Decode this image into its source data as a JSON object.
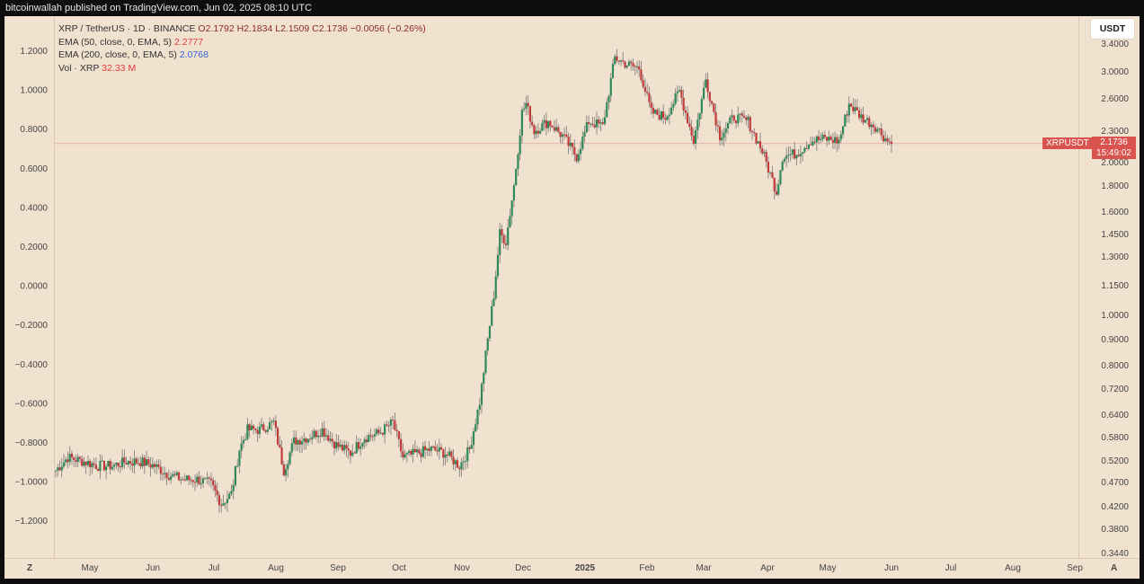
{
  "header": {
    "publisher": "bitcoinwallah published on TradingView.com, Jun 02, 2025 08:10 UTC"
  },
  "legend": {
    "pair": "XRP / TetherUS · 1D · BINANCE",
    "ohlc": "O2.1792  H2.1834  L2.1509  C2.1736  −0.0056 (−0.26%)",
    "ema50_label": "EMA (50, close, 0, EMA, 5)",
    "ema50_value": "2.2777",
    "ema200_label": "EMA (200, close, 0, EMA, 5)",
    "ema200_value": "2.0768",
    "vol_label": "Vol · XRP",
    "vol_value": "32.33 M"
  },
  "controls": {
    "currency": "USDT",
    "zoom_left": "Z",
    "auto_right": "A"
  },
  "price_tag": {
    "symbol": "XRPUSDT",
    "price": "2.1736",
    "countdown": "15:49:02"
  },
  "colors": {
    "up": "#2f8a57",
    "down": "#c23a3a",
    "background": "#f1e2d0",
    "tag": "#d9534f"
  },
  "chart_data": {
    "type": "candlestick",
    "left_axis_ticks": [
      "1.2000",
      "1.0000",
      "0.8000",
      "0.6000",
      "0.4000",
      "0.2000",
      "0.0000",
      "−0.2000",
      "−0.4000",
      "−0.6000",
      "−0.8000",
      "−1.0000",
      "−1.2000"
    ],
    "right_axis_ticks": [
      "3.4000",
      "3.0000",
      "2.6000",
      "2.3000",
      "2.0000",
      "1.8000",
      "1.6000",
      "1.4500",
      "1.3000",
      "1.1500",
      "1.0000",
      "0.9000",
      "0.8000",
      "0.7200",
      "0.6400",
      "0.5800",
      "0.5200",
      "0.4700",
      "0.4200",
      "0.3800",
      "0.3440"
    ],
    "x_labels": [
      "May",
      "Jun",
      "Jul",
      "Aug",
      "Sep",
      "Oct",
      "Nov",
      "Dec",
      "2025",
      "Feb",
      "Mar",
      "Apr",
      "May",
      "Jun",
      "Jul",
      "Aug",
      "Sep"
    ],
    "y_scale": "log",
    "current_price": 2.1736,
    "close_path": [
      [
        "Apr 14",
        0.5
      ],
      [
        "Apr 20",
        0.53
      ],
      [
        "Apr 28",
        0.52
      ],
      [
        "May 5",
        0.51
      ],
      [
        "May 12",
        0.51
      ],
      [
        "May 19",
        0.52
      ],
      [
        "May 26",
        0.52
      ],
      [
        "Jun 2",
        0.51
      ],
      [
        "Jun 9",
        0.49
      ],
      [
        "Jun 16",
        0.48
      ],
      [
        "Jun 23",
        0.48
      ],
      [
        "Jun 30",
        0.47
      ],
      [
        "Jul 5",
        0.43
      ],
      [
        "Jul 10",
        0.45
      ],
      [
        "Jul 14",
        0.55
      ],
      [
        "Jul 18",
        0.6
      ],
      [
        "Jul 24",
        0.6
      ],
      [
        "Jul 31",
        0.62
      ],
      [
        "Aug 5",
        0.5
      ],
      [
        "Aug 10",
        0.57
      ],
      [
        "Aug 17",
        0.58
      ],
      [
        "Aug 24",
        0.6
      ],
      [
        "Aug 31",
        0.56
      ],
      [
        "Sep 7",
        0.54
      ],
      [
        "Sep 14",
        0.58
      ],
      [
        "Sep 21",
        0.59
      ],
      [
        "Sep 28",
        0.62
      ],
      [
        "Oct 3",
        0.53
      ],
      [
        "Oct 10",
        0.54
      ],
      [
        "Oct 17",
        0.55
      ],
      [
        "Oct 24",
        0.54
      ],
      [
        "Oct 31",
        0.51
      ],
      [
        "Nov 5",
        0.55
      ],
      [
        "Nov 10",
        0.68
      ],
      [
        "Nov 14",
        0.9
      ],
      [
        "Nov 17",
        1.1
      ],
      [
        "Nov 20",
        1.45
      ],
      [
        "Nov 23",
        1.4
      ],
      [
        "Nov 27",
        1.8
      ],
      [
        "Dec 1",
        2.5
      ],
      [
        "Dec 3",
        2.6
      ],
      [
        "Dec 7",
        2.3
      ],
      [
        "Dec 14",
        2.4
      ],
      [
        "Dec 21",
        2.25
      ],
      [
        "Dec 28",
        2.05
      ],
      [
        "Jan 3",
        2.4
      ],
      [
        "Jan 10",
        2.35
      ],
      [
        "Jan 16",
        3.2
      ],
      [
        "Jan 22",
        3.1
      ],
      [
        "Jan 28",
        3.05
      ],
      [
        "Feb 3",
        2.5
      ],
      [
        "Feb 10",
        2.45
      ],
      [
        "Feb 17",
        2.75
      ],
      [
        "Feb 24",
        2.2
      ],
      [
        "Mar 2",
        2.9
      ],
      [
        "Mar 9",
        2.25
      ],
      [
        "Mar 16",
        2.45
      ],
      [
        "Mar 23",
        2.4
      ],
      [
        "Mar 30",
        2.1
      ],
      [
        "Apr 6",
        1.75
      ],
      [
        "Apr 9",
        2.05
      ],
      [
        "Apr 16",
        2.08
      ],
      [
        "Apr 23",
        2.2
      ],
      [
        "Apr 30",
        2.22
      ],
      [
        "May 7",
        2.2
      ],
      [
        "May 12",
        2.6
      ],
      [
        "May 18",
        2.45
      ],
      [
        "May 25",
        2.35
      ],
      [
        "May 31",
        2.2
      ],
      [
        "Jun 2",
        2.17
      ]
    ]
  }
}
